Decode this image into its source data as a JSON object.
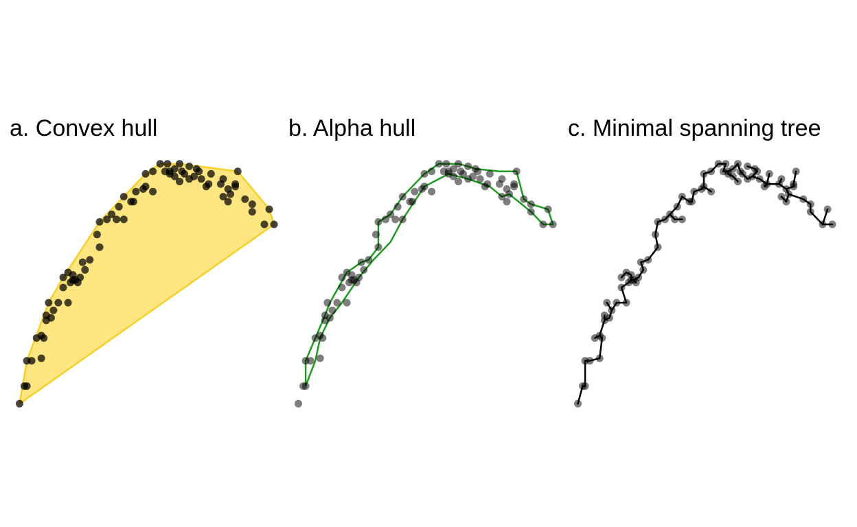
{
  "panels": [
    {
      "id": "a",
      "title": "a. Convex hull",
      "kind": "convex-hull"
    },
    {
      "id": "b",
      "title": "b. Alpha hull",
      "kind": "alpha-hull"
    },
    {
      "id": "c",
      "title": "c. Minimal spanning tree",
      "kind": "minimal-spanning-tree"
    }
  ],
  "colors": {
    "point": "#000000",
    "hull_fill": "#FFE680",
    "hull_stroke": "#F7CF2A",
    "alpha_stroke": "#229922",
    "tree_edge": "#000000"
  },
  "chart_data": {
    "type": "scatter",
    "points": [
      [
        -0.01,
        0.01
      ],
      [
        0.01,
        0.08
      ],
      [
        0.02,
        0.08
      ],
      [
        0.02,
        0.18
      ],
      [
        0.04,
        0.18
      ],
      [
        0.08,
        0.19
      ],
      [
        0.06,
        0.27
      ],
      [
        0.08,
        0.28
      ],
      [
        0.09,
        0.27
      ],
      [
        0.1,
        0.34
      ],
      [
        0.1,
        0.36
      ],
      [
        0.12,
        0.35
      ],
      [
        0.11,
        0.41
      ],
      [
        0.13,
        0.38
      ],
      [
        0.15,
        0.41
      ],
      [
        0.19,
        0.41
      ],
      [
        0.17,
        0.47
      ],
      [
        0.17,
        0.51
      ],
      [
        0.19,
        0.53
      ],
      [
        0.21,
        0.52
      ],
      [
        0.2,
        0.49
      ],
      [
        0.21,
        0.5
      ],
      [
        0.22,
        0.5
      ],
      [
        0.23,
        0.49
      ],
      [
        0.24,
        0.51
      ],
      [
        0.26,
        0.54
      ],
      [
        0.25,
        0.57
      ],
      [
        0.28,
        0.58
      ],
      [
        0.32,
        0.63
      ],
      [
        0.31,
        0.68
      ],
      [
        0.32,
        0.73
      ],
      [
        0.35,
        0.74
      ],
      [
        0.37,
        0.76
      ],
      [
        0.39,
        0.74
      ],
      [
        0.4,
        0.79
      ],
      [
        0.42,
        0.74
      ],
      [
        0.42,
        0.83
      ],
      [
        0.47,
        0.85
      ],
      [
        0.45,
        0.81
      ],
      [
        0.46,
        0.81
      ],
      [
        0.5,
        0.86
      ],
      [
        0.51,
        0.87
      ],
      [
        0.54,
        0.85
      ],
      [
        0.51,
        0.92
      ],
      [
        0.54,
        0.93
      ],
      [
        0.57,
        0.96
      ],
      [
        0.6,
        0.96
      ],
      [
        0.59,
        0.93
      ],
      [
        0.61,
        0.93
      ],
      [
        0.61,
        0.92
      ],
      [
        0.63,
        0.94
      ],
      [
        0.63,
        0.91
      ],
      [
        0.65,
        0.89
      ],
      [
        0.67,
        0.92
      ],
      [
        0.66,
        0.93
      ],
      [
        0.69,
        0.9
      ],
      [
        0.71,
        0.91
      ],
      [
        0.73,
        0.93
      ],
      [
        0.74,
        0.9
      ],
      [
        0.78,
        0.92
      ],
      [
        0.77,
        0.88
      ],
      [
        0.76,
        0.87
      ],
      [
        0.72,
        0.94
      ],
      [
        0.82,
        0.88
      ],
      [
        0.83,
        0.9
      ],
      [
        0.85,
        0.86
      ],
      [
        0.86,
        0.84
      ],
      [
        0.85,
        0.81
      ],
      [
        0.83,
        0.83
      ],
      [
        0.89,
        0.93
      ],
      [
        0.95,
        0.8
      ],
      [
        0.95,
        0.77
      ],
      [
        1.0,
        0.72
      ],
      [
        1.02,
        0.78
      ],
      [
        1.04,
        0.72
      ],
      [
        0.92,
        0.82
      ],
      [
        0.88,
        0.87
      ],
      [
        0.88,
        0.88
      ],
      [
        0.65,
        0.96
      ],
      [
        0.69,
        0.95
      ]
    ],
    "alpha_hull": [
      [
        0.02,
        0.08
      ],
      [
        0.02,
        0.18
      ],
      [
        0.06,
        0.27
      ],
      [
        0.1,
        0.36
      ],
      [
        0.12,
        0.41
      ],
      [
        0.19,
        0.53
      ],
      [
        0.25,
        0.57
      ],
      [
        0.28,
        0.58
      ],
      [
        0.32,
        0.63
      ],
      [
        0.32,
        0.73
      ],
      [
        0.37,
        0.76
      ],
      [
        0.42,
        0.83
      ],
      [
        0.51,
        0.92
      ],
      [
        0.57,
        0.96
      ],
      [
        0.65,
        0.96
      ],
      [
        0.69,
        0.95
      ],
      [
        0.72,
        0.94
      ],
      [
        0.82,
        0.93
      ],
      [
        0.89,
        0.93
      ],
      [
        0.92,
        0.82
      ],
      [
        0.95,
        0.8
      ],
      [
        1.02,
        0.78
      ],
      [
        1.04,
        0.72
      ],
      [
        1.0,
        0.72
      ],
      [
        0.95,
        0.77
      ],
      [
        0.86,
        0.84
      ],
      [
        0.83,
        0.83
      ],
      [
        0.78,
        0.87
      ],
      [
        0.69,
        0.9
      ],
      [
        0.61,
        0.92
      ],
      [
        0.51,
        0.87
      ],
      [
        0.42,
        0.74
      ],
      [
        0.37,
        0.65
      ],
      [
        0.3,
        0.58
      ],
      [
        0.24,
        0.51
      ],
      [
        0.17,
        0.41
      ],
      [
        0.12,
        0.35
      ],
      [
        0.08,
        0.27
      ],
      [
        0.06,
        0.18
      ],
      [
        0.02,
        0.08
      ]
    ],
    "xlim": [
      -0.03,
      1.06
    ],
    "ylim": [
      -0.03,
      1.0
    ]
  }
}
